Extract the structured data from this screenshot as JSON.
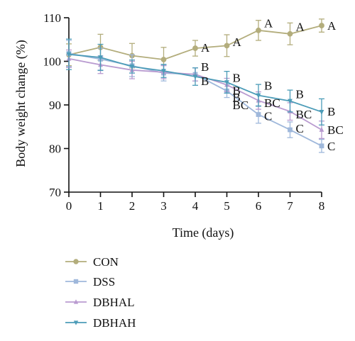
{
  "chart_data": {
    "type": "line",
    "title": "",
    "xlabel": "Time (days)",
    "ylabel": "Body weight change (%)",
    "x": [
      0,
      1,
      2,
      3,
      4,
      5,
      6,
      7,
      8
    ],
    "x_ticks": [
      "0",
      "1",
      "2",
      "3",
      "4",
      "5",
      "6",
      "7",
      "8"
    ],
    "y_ticks": [
      "70",
      "80",
      "90",
      "100",
      "110"
    ],
    "xlim": [
      0,
      8
    ],
    "ylim": [
      70,
      110
    ],
    "grid": false,
    "legend_position": "bottom-left",
    "series": [
      {
        "name": "CON",
        "color": "#b3ad7c",
        "marker": "circle",
        "values": [
          101.5,
          103.2,
          101.3,
          100.4,
          103.0,
          103.6,
          107.1,
          106.3,
          108.2
        ],
        "errors": [
          2.5,
          3.0,
          2.8,
          2.8,
          1.8,
          2.5,
          2.3,
          2.5,
          1.5
        ]
      },
      {
        "name": "DSS",
        "color": "#9fb8db",
        "marker": "square",
        "values": [
          101.8,
          100.5,
          99.0,
          97.3,
          97.0,
          93.2,
          87.8,
          84.3,
          80.6
        ],
        "errors": [
          3.0,
          2.5,
          2.5,
          1.8,
          1.5,
          1.5,
          2.0,
          1.8,
          1.5
        ]
      },
      {
        "name": "DBHAL",
        "color": "#b99bd0",
        "marker": "triangle-up",
        "values": [
          100.6,
          99.2,
          98.0,
          97.5,
          97.0,
          94.6,
          91.0,
          88.5,
          84.3
        ],
        "errors": [
          2.0,
          2.0,
          2.0,
          1.5,
          1.5,
          1.5,
          2.0,
          2.0,
          2.0
        ]
      },
      {
        "name": "DBHAH",
        "color": "#4c9cb8",
        "marker": "triangle-down",
        "values": [
          101.6,
          100.9,
          98.8,
          97.8,
          96.5,
          95.2,
          92.2,
          90.9,
          88.4
        ],
        "errors": [
          3.5,
          3.0,
          1.5,
          1.5,
          2.0,
          2.5,
          2.5,
          2.5,
          3.0
        ]
      }
    ],
    "annotations": [
      {
        "x": 4,
        "label": "A",
        "y": 103.2
      },
      {
        "x": 5,
        "label": "A",
        "y": 104.5
      },
      {
        "x": 6,
        "label": "A",
        "y": 108.8
      },
      {
        "x": 7,
        "label": "A",
        "y": 108.0
      },
      {
        "x": 8,
        "label": "A",
        "y": 108.2
      },
      {
        "x": 4,
        "label": "B",
        "y": 98.8
      },
      {
        "x": 4,
        "label": "B",
        "y": 95.5
      },
      {
        "x": 5,
        "label": "B",
        "y": 96.3
      },
      {
        "x": 5,
        "label": "B",
        "y": 93.3
      },
      {
        "x": 5,
        "label": "B",
        "y": 91.8
      },
      {
        "x": 5,
        "label": "BC",
        "y": 90.0
      },
      {
        "x": 6,
        "label": "B",
        "y": 94.5
      },
      {
        "x": 6,
        "label": "BC",
        "y": 90.5
      },
      {
        "x": 6,
        "label": "C",
        "y": 87.5
      },
      {
        "x": 7,
        "label": "B",
        "y": 92.5
      },
      {
        "x": 7,
        "label": "BC",
        "y": 87.9
      },
      {
        "x": 7,
        "label": "C",
        "y": 84.6
      },
      {
        "x": 8,
        "label": "B",
        "y": 88.5
      },
      {
        "x": 8,
        "label": "BC",
        "y": 84.3
      },
      {
        "x": 8,
        "label": "C",
        "y": 80.6
      }
    ]
  }
}
